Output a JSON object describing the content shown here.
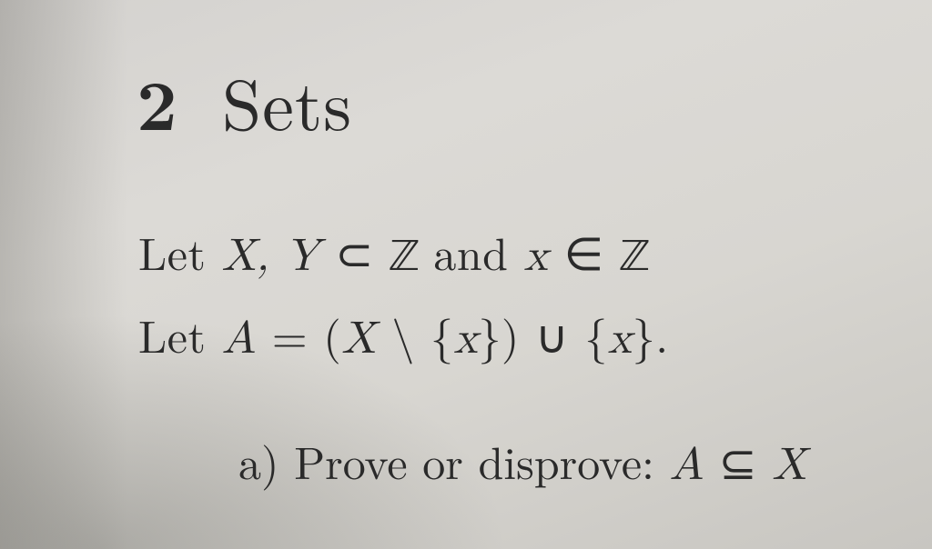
{
  "section": {
    "number": "2",
    "title": "Sets"
  },
  "setup": {
    "line1_prefix": "Let ",
    "line1_XY": "X, Y",
    "line1_sub": " ⊂ ",
    "line1_Z1": "ℤ",
    "line1_and": " and ",
    "line1_x": "x",
    "line1_in": " ∈ ",
    "line1_Z2": "ℤ",
    "line2_prefix": "Let ",
    "line2_A": "A",
    "line2_eq": " = (",
    "line2_X": "X",
    "line2_setminus": " \\ {",
    "line2_x1": "x",
    "line2_close1": "}) ∪ {",
    "line2_x2": "x",
    "line2_close2": "}."
  },
  "part_a": {
    "label": "a)",
    "text": " Prove or disprove: ",
    "claim_A": "A",
    "claim_rel": " ⊆ ",
    "claim_X": "X"
  },
  "style": {
    "section_number_fontsize": 78,
    "section_title_fontsize": 78,
    "body_fontsize": 50,
    "text_color": "#2a2a2a",
    "background_color": "#d8d6d1"
  }
}
